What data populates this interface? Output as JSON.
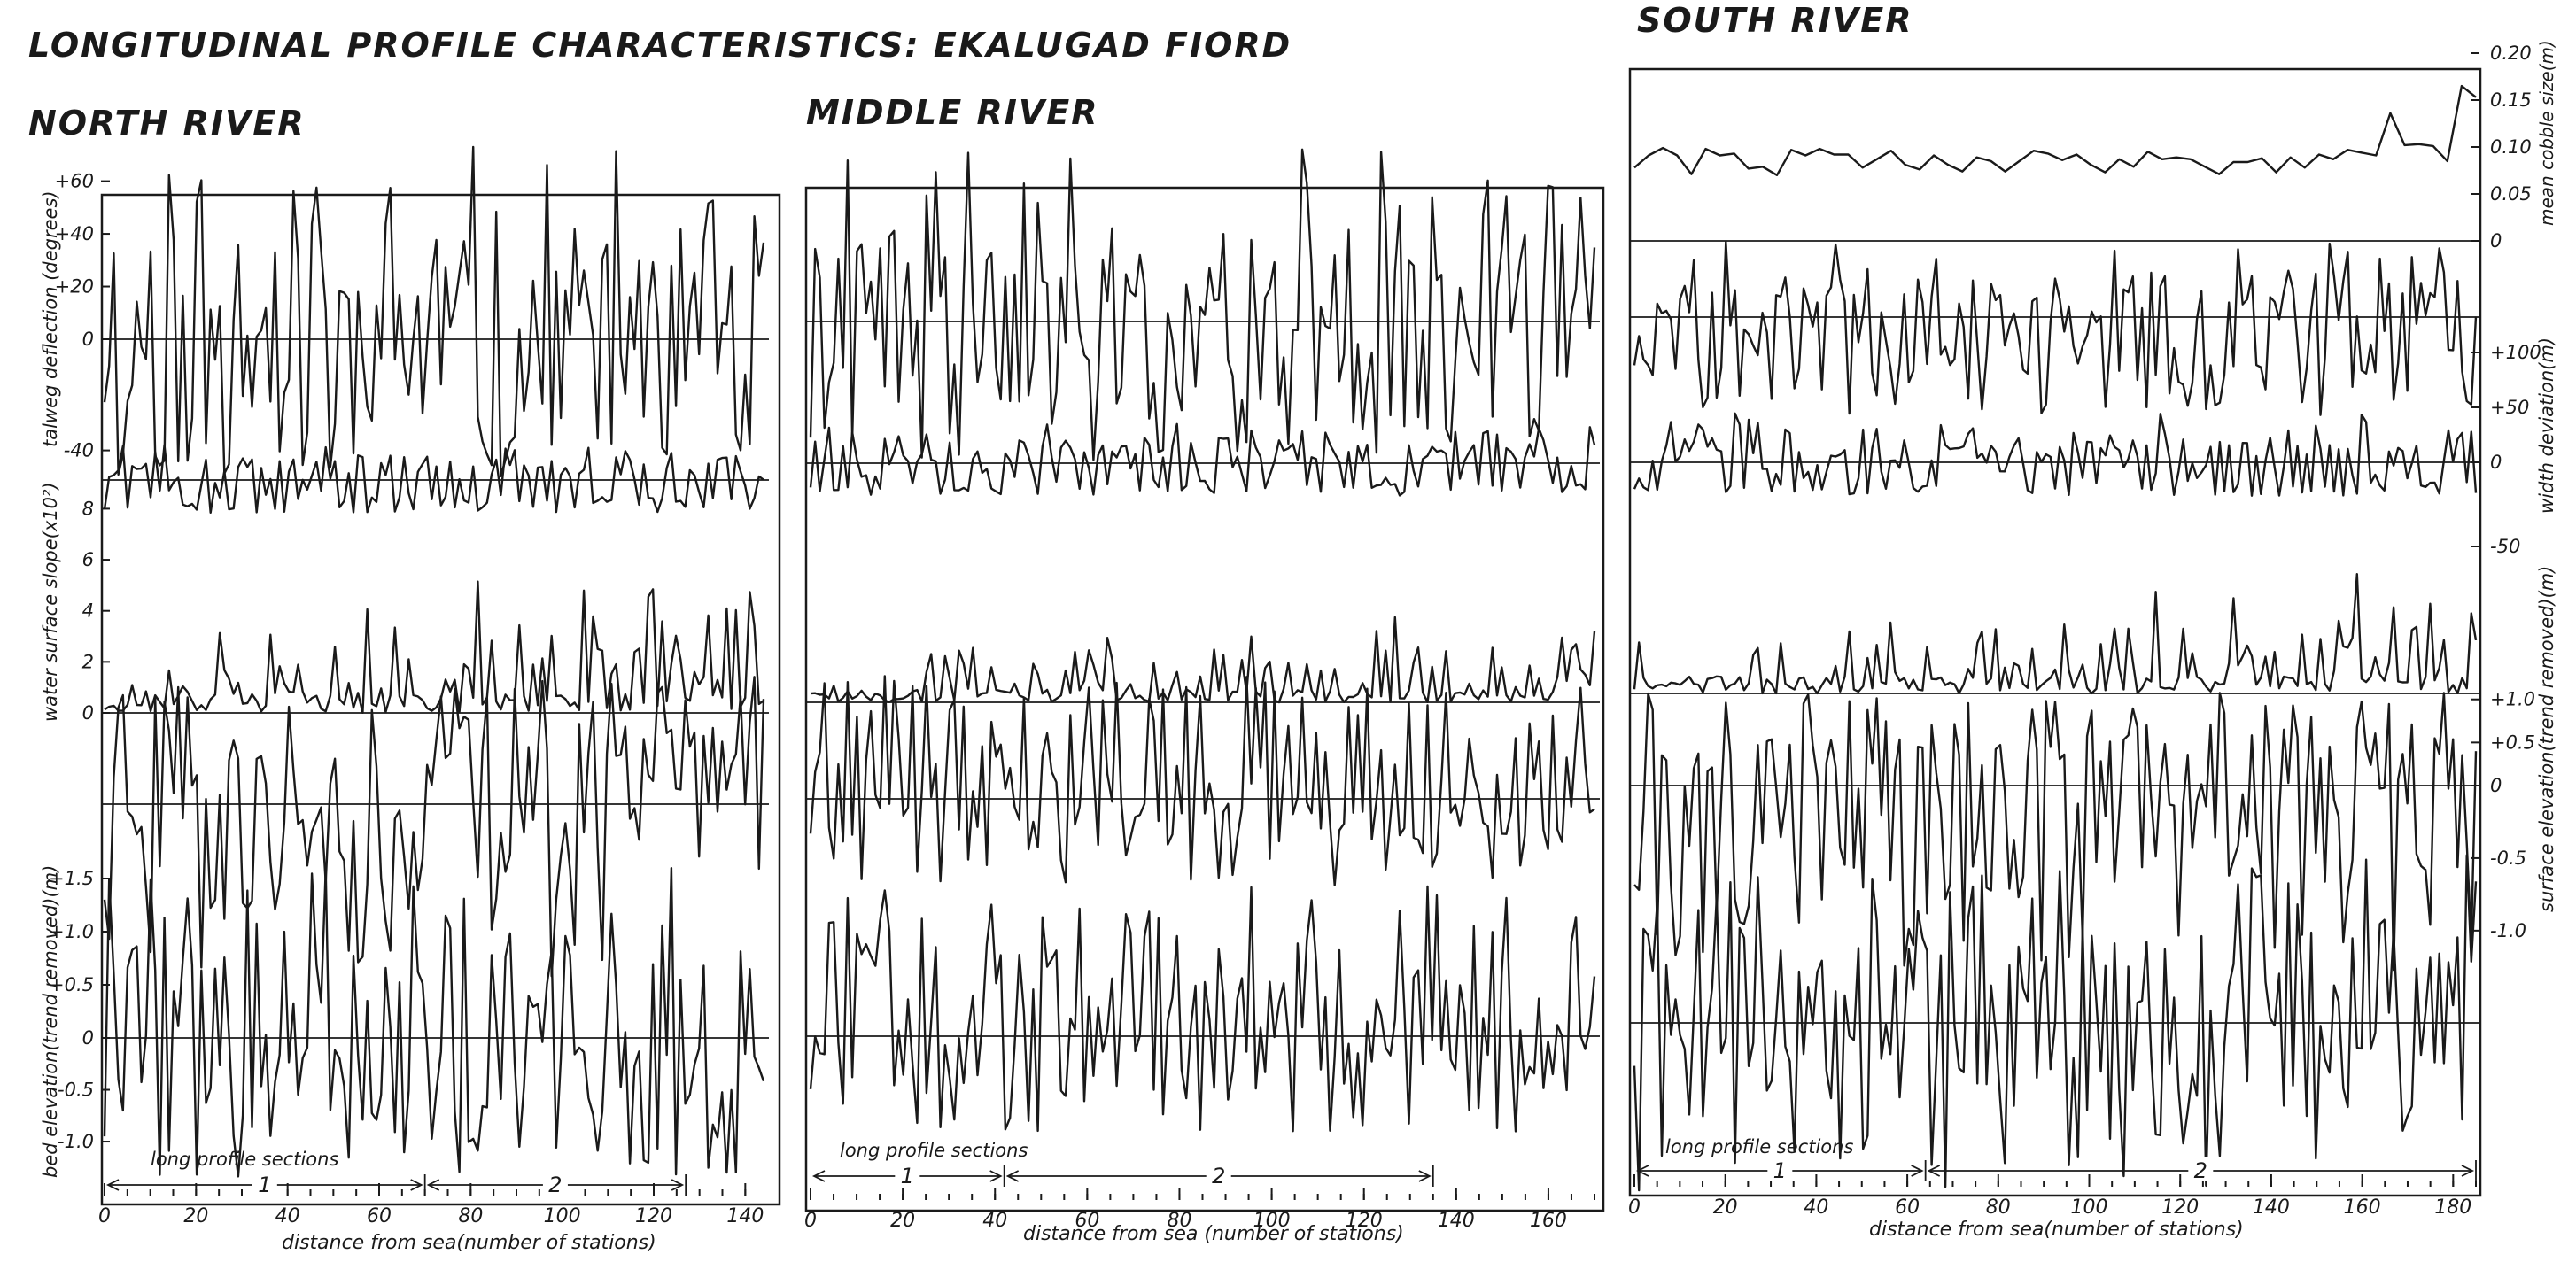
{
  "title": "LONGITUDINAL PROFILE CHARACTERISTICS: EKALUGAD FIORD",
  "common": {
    "xlabel_north": "distance from sea(number of stations)",
    "xlabel_middle": "distance from sea (number of stations)",
    "xlabel_south": "distance from sea(number of stations)",
    "sections_label": "long profile sections",
    "section_1": "1",
    "section_2": "2"
  },
  "chart_data": [
    {
      "type": "line",
      "title": "NORTH RIVER",
      "x": {
        "min": 0,
        "max": 144,
        "ticks": [
          0,
          20,
          40,
          60,
          80,
          100,
          120,
          140
        ]
      },
      "sections": [
        {
          "label": "1",
          "from": 0,
          "to": 70
        },
        {
          "label": "2",
          "from": 70,
          "to": 127
        }
      ],
      "series": [
        {
          "key": "talweg",
          "ylabel": "talweg deflection (degrees)",
          "ticks": [
            "+60",
            "+40",
            "+20",
            "0",
            "-40"
          ],
          "tick_values": [
            60,
            40,
            20,
            0,
            -40
          ],
          "approx_range": [
            -50,
            75
          ]
        },
        {
          "key": "width",
          "ylabel": "",
          "approx_range": [
            -10,
            40
          ]
        },
        {
          "key": "slope",
          "ylabel": "water surface slope(x10²)",
          "ticks": [
            "8",
            "6",
            "4",
            "2",
            "0"
          ],
          "tick_values": [
            8,
            6,
            4,
            2,
            0
          ],
          "approx_range": [
            0,
            8.5
          ]
        },
        {
          "key": "surface",
          "ylabel": "",
          "approx_range": [
            -1.3,
            1.1
          ]
        },
        {
          "key": "bed",
          "ylabel": "bed elevation(trend removed)(m)",
          "ticks": [
            "+1.5",
            "+1.0",
            "+0.5",
            "0",
            "-0.5",
            "-1.0"
          ],
          "tick_values": [
            1.5,
            1.0,
            0.5,
            0,
            -0.5,
            -1.0
          ],
          "approx_range": [
            -1.35,
            1.6
          ]
        }
      ]
    },
    {
      "type": "line",
      "title": "MIDDLE RIVER",
      "x": {
        "min": 0,
        "max": 170,
        "ticks": [
          0,
          20,
          40,
          60,
          80,
          100,
          120,
          140,
          160
        ]
      },
      "sections": [
        {
          "label": "1",
          "from": 0,
          "to": 42
        },
        {
          "label": "2",
          "from": 42,
          "to": 135
        }
      ],
      "series": [
        {
          "key": "talweg",
          "ylabel": "",
          "approx_range": [
            -50,
            75
          ]
        },
        {
          "key": "width",
          "ylabel": "",
          "approx_range": [
            -10,
            40
          ]
        },
        {
          "key": "slope",
          "ylabel": "",
          "approx_range": [
            0,
            8.5
          ]
        },
        {
          "key": "surface",
          "ylabel": "",
          "approx_range": [
            -1.3,
            1.1
          ]
        },
        {
          "key": "bed",
          "ylabel": "",
          "approx_range": [
            -1.35,
            1.6
          ]
        }
      ]
    },
    {
      "type": "line",
      "title": "SOUTH RIVER",
      "x": {
        "min": 0,
        "max": 185,
        "ticks": [
          0,
          20,
          40,
          60,
          80,
          100,
          120,
          140,
          160,
          180
        ]
      },
      "sections": [
        {
          "label": "1",
          "from": 0,
          "to": 64
        },
        {
          "label": "2",
          "from": 64,
          "to": 185
        }
      ],
      "series": [
        {
          "key": "cobble",
          "ylabel": "mean cobble size(m)",
          "ticks": [
            "0.20",
            "0.15",
            "0.10",
            "0.05",
            "0"
          ],
          "tick_values": [
            0.2,
            0.15,
            0.1,
            0.05,
            0
          ],
          "approx_range": [
            0.04,
            0.2
          ]
        },
        {
          "key": "talweg",
          "ylabel": "",
          "approx_range": [
            -50,
            75
          ]
        },
        {
          "key": "width",
          "ylabel": "width deviation(m)",
          "ticks": [
            "+100",
            "+50",
            "0",
            "-50"
          ],
          "tick_values": [
            100,
            50,
            0,
            -50
          ],
          "approx_range": [
            -20,
            50
          ]
        },
        {
          "key": "slope",
          "ylabel": "",
          "approx_range": [
            0,
            8.5
          ]
        },
        {
          "key": "surface",
          "ylabel": "surface elevation(trend removed)(m)",
          "ticks": [
            "+1.0",
            "+0.5",
            "0",
            "-0.5",
            "-1.0"
          ],
          "tick_values": [
            1.0,
            0.5,
            0,
            -0.5,
            -1.0
          ],
          "approx_range": [
            -1.3,
            1.1
          ]
        },
        {
          "key": "bed",
          "ylabel": "",
          "approx_range": [
            -1.5,
            1.6
          ]
        }
      ]
    }
  ]
}
